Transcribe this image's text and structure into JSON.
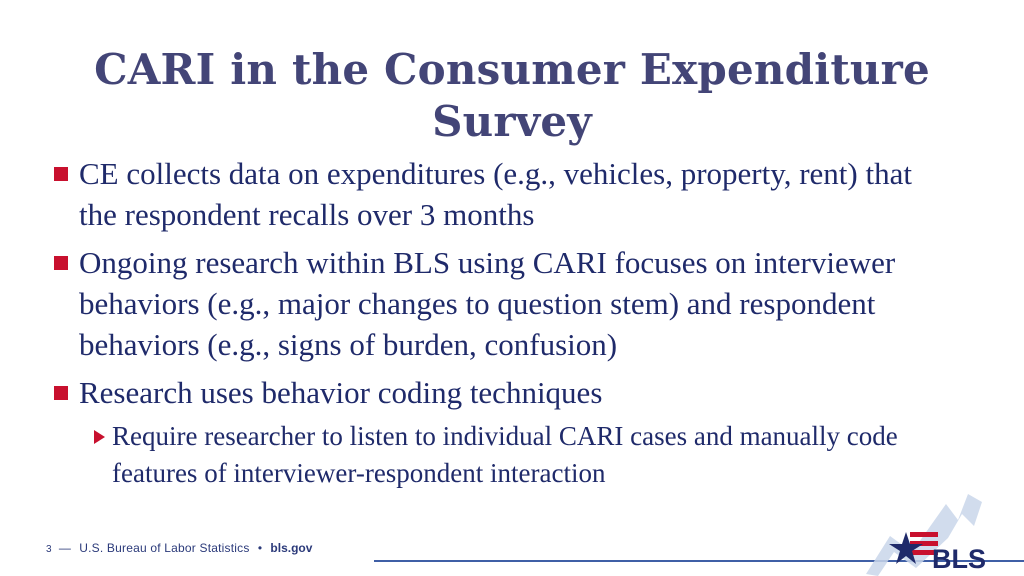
{
  "slide": {
    "title": "CARI in the Consumer Expenditure Survey",
    "bullets": [
      {
        "text": "CE collects data on expenditures (e.g., vehicles, property, rent) that the respondent recalls over 3 months"
      },
      {
        "text": "Ongoing research within BLS using CARI focuses on interviewer behaviors (e.g., major changes to question stem) and respondent behaviors (e.g., signs of burden, confusion)"
      },
      {
        "text": "Research uses behavior coding techniques",
        "sub": "Require researcher to listen to individual CARI cases and manually code features of interviewer-respondent interaction"
      }
    ]
  },
  "footer": {
    "page_number": "3",
    "dash": "—",
    "org": "U.S. Bureau of Labor Statistics",
    "separator": "•",
    "url": "bls.gov"
  },
  "logo": {
    "text": "BLS",
    "icon": "bls-star-chart-logo"
  },
  "colors": {
    "title": "#434577",
    "body_text": "#1f2a6a",
    "bullet_marker": "#c8102e",
    "footer_line": "#3f5fa6"
  }
}
